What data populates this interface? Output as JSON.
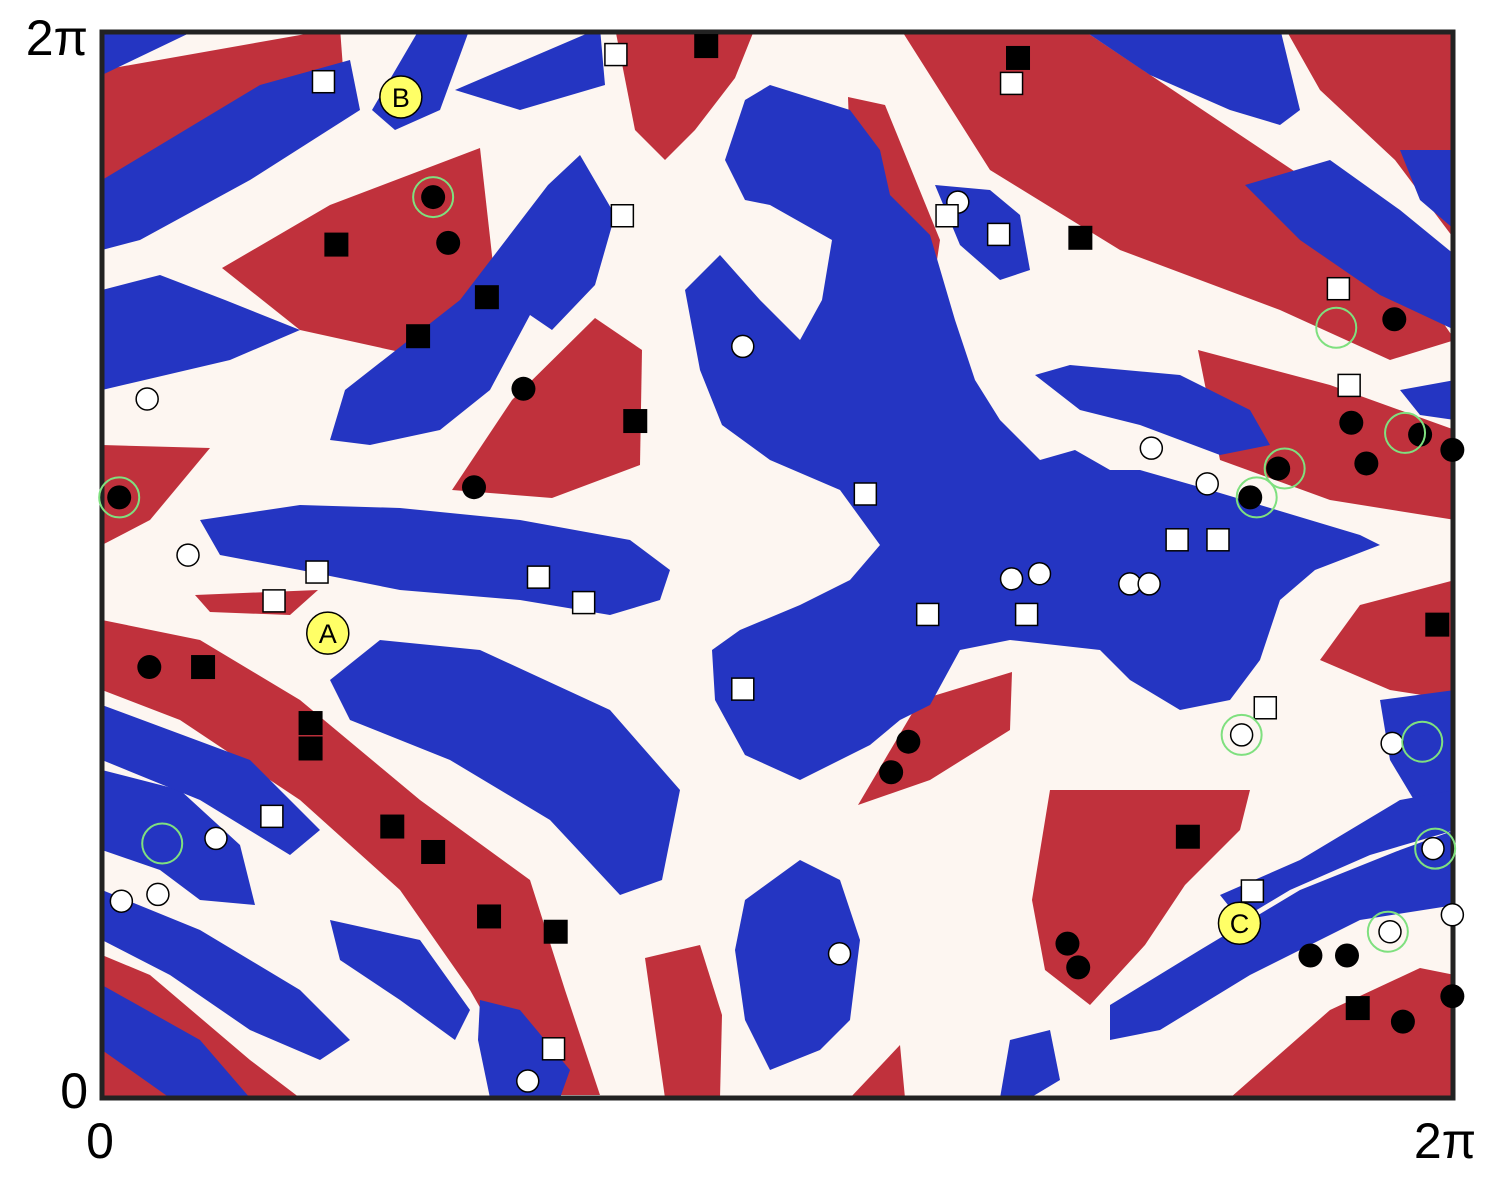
{
  "colors": {
    "background": "#fdf6f1",
    "red": "#c0313c",
    "blue": "#2435c2",
    "frame": "#222222",
    "highlight": "#ffff66",
    "ring": "#7fe07f"
  },
  "axes": {
    "x_min_label": "0",
    "x_max_label": "2π",
    "y_min_label": "0",
    "y_max_label": "2π"
  },
  "annotations": [
    {
      "label": "A",
      "x": 1.05,
      "y": 2.74
    },
    {
      "label": "B",
      "x": 1.39,
      "y": 5.9
    },
    {
      "label": "C",
      "x": 5.29,
      "y": 1.03
    }
  ],
  "chart_data": {
    "type": "scatter",
    "xlim": [
      0,
      6.283
    ],
    "ylim": [
      0,
      6.283
    ],
    "x_ticks": [
      "0",
      "2π"
    ],
    "y_ticks": [
      "0",
      "2π"
    ],
    "series": [
      {
        "marker": "black-circle",
        "points": [
          [
            1.54,
            5.31
          ],
          [
            1.61,
            5.04
          ],
          [
            1.73,
            3.6
          ],
          [
            0.08,
            3.54
          ],
          [
            0.22,
            2.54
          ],
          [
            1.96,
            4.18
          ],
          [
            6.01,
            4.59
          ],
          [
            6.13,
            3.91
          ],
          [
            5.81,
            3.98
          ],
          [
            5.34,
            3.54
          ],
          [
            5.47,
            3.71
          ],
          [
            6.28,
            3.82
          ],
          [
            5.88,
            3.74
          ],
          [
            3.75,
            2.1
          ],
          [
            3.67,
            1.92
          ],
          [
            4.49,
            0.91
          ],
          [
            4.54,
            0.77
          ],
          [
            5.62,
            0.84
          ],
          [
            6.28,
            0.6
          ],
          [
            6.05,
            0.45
          ],
          [
            5.79,
            0.84
          ]
        ]
      },
      {
        "marker": "white-circle",
        "points": [
          [
            0.21,
            4.12
          ],
          [
            0.4,
            3.2
          ],
          [
            2.98,
            4.43
          ],
          [
            4.88,
            3.83
          ],
          [
            5.14,
            3.62
          ],
          [
            3.98,
            5.28
          ],
          [
            4.23,
            3.06
          ],
          [
            4.36,
            3.09
          ],
          [
            4.78,
            3.03
          ],
          [
            4.87,
            3.03
          ],
          [
            5.3,
            2.14
          ],
          [
            6.0,
            2.09
          ],
          [
            6.19,
            1.47
          ],
          [
            6.28,
            1.08
          ],
          [
            5.99,
            0.98
          ],
          [
            0.53,
            1.53
          ],
          [
            0.26,
            1.2
          ],
          [
            0.09,
            1.16
          ],
          [
            3.43,
            0.85
          ],
          [
            1.98,
            0.1
          ]
        ]
      },
      {
        "marker": "black-square",
        "points": [
          [
            2.81,
            6.2
          ],
          [
            4.26,
            6.13
          ],
          [
            1.09,
            5.03
          ],
          [
            1.79,
            4.72
          ],
          [
            1.47,
            4.49
          ],
          [
            2.48,
            3.99
          ],
          [
            4.55,
            5.07
          ],
          [
            5.84,
            0.53
          ],
          [
            6.21,
            2.79
          ],
          [
            0.47,
            2.54
          ],
          [
            0.97,
            2.21
          ],
          [
            0.97,
            2.06
          ],
          [
            1.35,
            1.6
          ],
          [
            1.54,
            1.45
          ],
          [
            1.8,
            1.07
          ],
          [
            2.11,
            0.98
          ],
          [
            5.05,
            1.54
          ]
        ]
      },
      {
        "marker": "white-square",
        "points": [
          [
            1.03,
            5.99
          ],
          [
            2.39,
            6.15
          ],
          [
            4.23,
            5.98
          ],
          [
            2.42,
            5.2
          ],
          [
            3.93,
            5.2
          ],
          [
            4.17,
            5.09
          ],
          [
            5.75,
            4.77
          ],
          [
            5.8,
            4.2
          ],
          [
            3.55,
            3.56
          ],
          [
            1.0,
            3.1
          ],
          [
            2.03,
            3.07
          ],
          [
            2.24,
            2.92
          ],
          [
            0.8,
            2.93
          ],
          [
            3.84,
            2.85
          ],
          [
            4.3,
            2.85
          ],
          [
            2.98,
            2.41
          ],
          [
            5.0,
            3.29
          ],
          [
            5.19,
            3.29
          ],
          [
            5.41,
            2.3
          ],
          [
            0.79,
            1.66
          ],
          [
            5.35,
            1.22
          ],
          [
            2.1,
            0.29
          ]
        ]
      },
      {
        "marker": "green-ring",
        "points": [
          [
            1.54,
            5.31
          ],
          [
            5.74,
            4.54
          ],
          [
            6.06,
            3.92
          ],
          [
            0.08,
            3.54
          ],
          [
            5.5,
            3.71
          ],
          [
            5.37,
            3.54
          ],
          [
            5.3,
            2.14
          ],
          [
            6.14,
            2.1
          ],
          [
            0.28,
            1.5
          ],
          [
            6.2,
            1.47
          ],
          [
            5.98,
            0.98
          ]
        ]
      }
    ]
  }
}
